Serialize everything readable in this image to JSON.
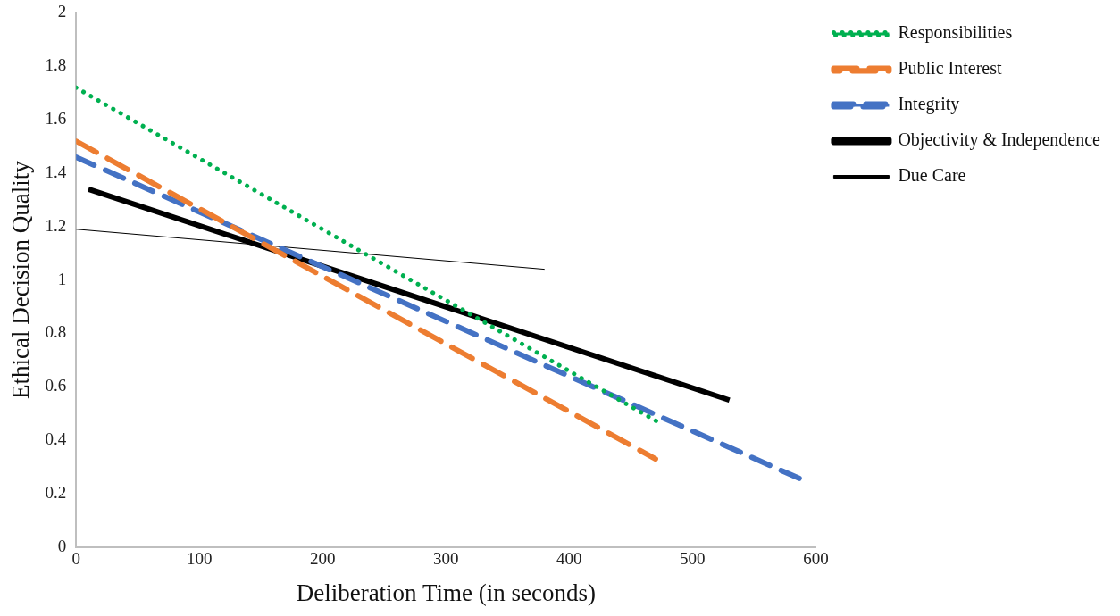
{
  "chart_data": {
    "type": "line",
    "xlabel": "Deliberation Time (in seconds)",
    "ylabel": "Ethical Decision Quality",
    "xlim": [
      0,
      600
    ],
    "xticks": [
      0,
      100,
      200,
      300,
      400,
      500,
      600
    ],
    "ylim": [
      0,
      2
    ],
    "yticks": [
      0,
      0.2,
      0.4,
      0.6,
      0.8,
      1,
      1.2,
      1.4,
      1.6,
      1.8,
      2
    ],
    "grid": false,
    "legend": "top right",
    "marker": "none",
    "series": [
      {
        "name": "Responsibilities",
        "color": "#00b050",
        "line_style": "dotted",
        "x": [
          0,
          475
        ],
        "values": [
          1.72,
          0.46
        ]
      },
      {
        "name": "Public Interest",
        "color": "#ed7d31",
        "line_style": "dashed",
        "x": [
          0,
          470
        ],
        "values": [
          1.52,
          0.33
        ]
      },
      {
        "name": "Integrity",
        "color": "#4472c4",
        "line_style": "dashed",
        "x": [
          0,
          590
        ],
        "values": [
          1.46,
          0.25
        ]
      },
      {
        "name": "Objectivity & Independence",
        "color": "#000000",
        "line_style": "solid",
        "x": [
          10,
          530
        ],
        "values": [
          1.34,
          0.55
        ]
      },
      {
        "name": "Due Care",
        "color": "#000000",
        "line_style": "solid",
        "x": [
          0,
          380
        ],
        "values": [
          1.19,
          1.04
        ]
      }
    ]
  }
}
